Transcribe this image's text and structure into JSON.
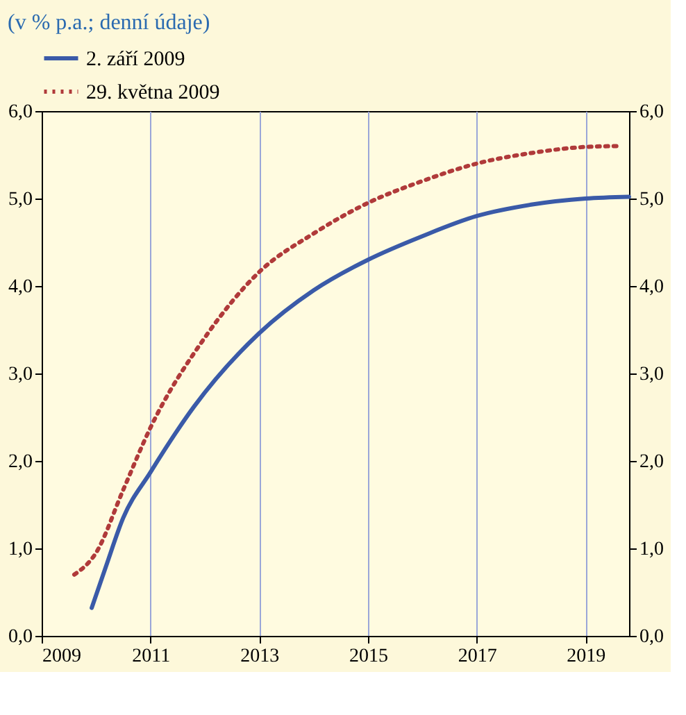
{
  "chart_data": {
    "type": "line",
    "title": "(v % p.a.; denní údaje)",
    "xlim": [
      2009,
      2019.8
    ],
    "xticks": [
      2009,
      2011,
      2013,
      2015,
      2017,
      2019
    ],
    "ylim": [
      0,
      6
    ],
    "yticks": [
      {
        "value": 0,
        "label": "0,0"
      },
      {
        "value": 1,
        "label": "1,0"
      },
      {
        "value": 2,
        "label": "2,0"
      },
      {
        "value": 3,
        "label": "3,0"
      },
      {
        "value": 4,
        "label": "4,0"
      },
      {
        "value": 5,
        "label": "5,0"
      },
      {
        "value": 6,
        "label": "6,0"
      }
    ],
    "y2lim": [
      0,
      6
    ],
    "y2ticks": [
      {
        "value": 0,
        "label": "0,0"
      },
      {
        "value": 1,
        "label": "1,0"
      },
      {
        "value": 2,
        "label": "2,0"
      },
      {
        "value": 3,
        "label": "3,0"
      },
      {
        "value": 4,
        "label": "4,0"
      },
      {
        "value": 5,
        "label": "5,0"
      },
      {
        "value": 6,
        "label": "6,0"
      }
    ],
    "grid": "x",
    "legend": "top left",
    "series": [
      {
        "name": "2. září 2009",
        "color": "#3a5aa8",
        "line_style": "solid",
        "x": [
          2009.92,
          2010.18,
          2010.5,
          2011,
          2011.8,
          2013,
          2014,
          2015,
          2016,
          2017,
          2018,
          2019,
          2019.8
        ],
        "values": [
          0.32,
          0.79,
          1.35,
          1.87,
          2.62,
          3.46,
          3.95,
          4.3,
          4.57,
          4.8,
          4.93,
          5.0,
          5.02
        ]
      },
      {
        "name": "29. května 2009",
        "color": "#b03a3a",
        "line_style": "dotted",
        "x": [
          2009.6,
          2010,
          2010.5,
          2011,
          2012,
          2013,
          2014,
          2015,
          2016,
          2017,
          2018,
          2019,
          2019.6
        ],
        "values": [
          0.7,
          0.95,
          1.67,
          2.38,
          3.41,
          4.16,
          4.6,
          4.95,
          5.2,
          5.4,
          5.52,
          5.59,
          5.6
        ]
      }
    ]
  }
}
